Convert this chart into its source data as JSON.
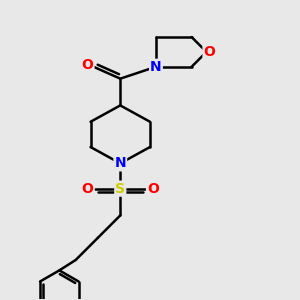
{
  "background_color": "#e8e8e8",
  "bond_color": "#000000",
  "bond_width": 1.8,
  "atom_colors": {
    "N": "#0000ff",
    "O": "#ff0000",
    "S": "#cccc00",
    "C": "#000000"
  },
  "font_size_atoms": 10,
  "xlim": [
    0,
    10
  ],
  "ylim": [
    0,
    10
  ]
}
